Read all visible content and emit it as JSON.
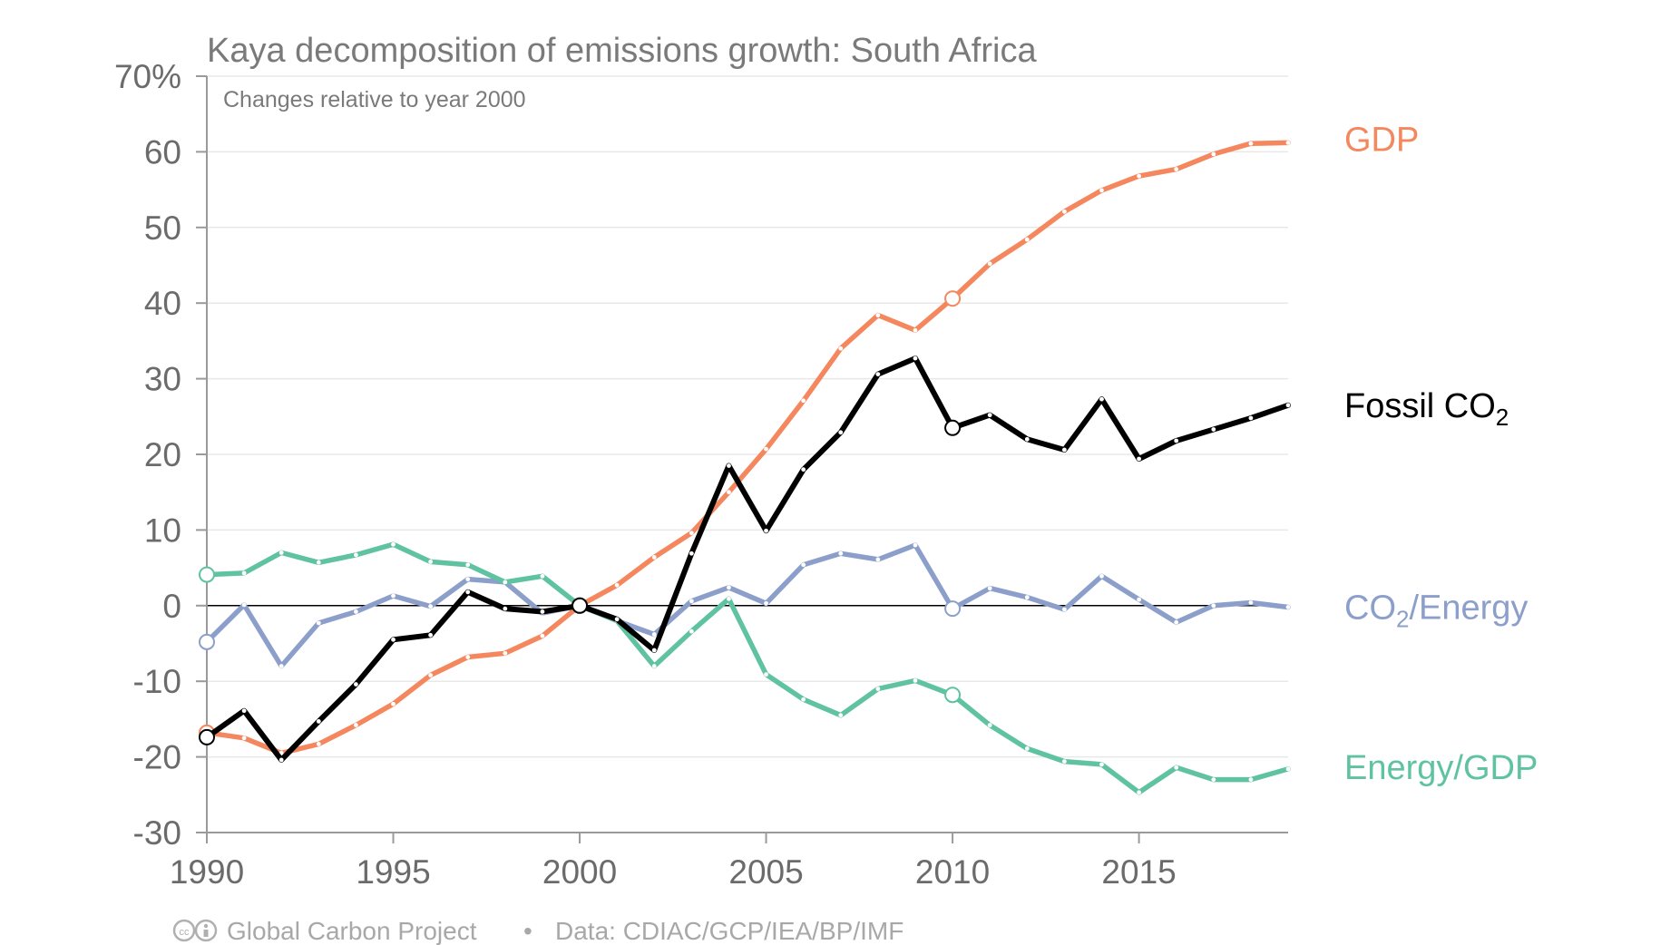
{
  "chart_data": {
    "type": "line",
    "title": "Kaya decomposition of emissions growth: South Africa",
    "subtitle": "Changes relative to year 2000",
    "xlabel": "",
    "ylabel": "",
    "xlim": [
      1990,
      2019
    ],
    "ylim": [
      -30,
      70
    ],
    "x_ticks": [
      1990,
      1995,
      2000,
      2005,
      2010,
      2015
    ],
    "x_tick_labels": [
      "1990",
      "1995",
      "2000",
      "2005",
      "2010",
      "2015"
    ],
    "y_ticks": [
      -30,
      -20,
      -10,
      0,
      10,
      20,
      30,
      40,
      50,
      60,
      70
    ],
    "y_tick_labels": [
      "-30",
      "-20",
      "-10",
      "0",
      "10",
      "20",
      "30",
      "40",
      "50",
      "60",
      "70%"
    ],
    "grid": true,
    "highlight_years": [
      1990,
      2000,
      2010
    ],
    "x": [
      1990,
      1991,
      1992,
      1993,
      1994,
      1995,
      1996,
      1997,
      1998,
      1999,
      2000,
      2001,
      2002,
      2003,
      2004,
      2005,
      2006,
      2007,
      2008,
      2009,
      2010,
      2011,
      2012,
      2013,
      2014,
      2015,
      2016,
      2017,
      2018,
      2019
    ],
    "series": [
      {
        "label": "GDP",
        "color": "#f4875d",
        "values": [
          -16.8,
          -17.5,
          -19.5,
          -18.3,
          -15.8,
          -13.0,
          -9.2,
          -6.8,
          -6.3,
          -4.0,
          0,
          2.7,
          6.4,
          9.6,
          15.0,
          20.7,
          27.1,
          34.0,
          38.4,
          36.4,
          40.6,
          45.2,
          48.4,
          52.1,
          54.9,
          56.8,
          57.7,
          59.7,
          61.1,
          61.2
        ]
      },
      {
        "label": "Fossil CO",
        "label_sub": "2",
        "color": "#000000",
        "values": [
          -17.4,
          -13.9,
          -20.4,
          -15.3,
          -10.4,
          -4.5,
          -3.9,
          1.8,
          -0.4,
          -0.8,
          0,
          -1.8,
          -5.9,
          6.9,
          18.5,
          9.9,
          18.0,
          22.9,
          30.6,
          32.7,
          23.5,
          25.2,
          22.0,
          20.6,
          27.3,
          19.4,
          21.8,
          23.3,
          24.8,
          26.5
        ]
      },
      {
        "label": "CO",
        "label_sub": "2",
        "label_rest": "/Energy",
        "color": "#8c9fcb",
        "values": [
          -4.8,
          0.1,
          -8.0,
          -2.3,
          -0.8,
          1.3,
          -0.1,
          3.5,
          3.1,
          -1.0,
          0,
          -2.0,
          -3.8,
          0.6,
          2.4,
          0.3,
          5.4,
          6.9,
          6.1,
          8.0,
          -0.4,
          2.3,
          1.1,
          -0.5,
          3.9,
          0.8,
          -2.2,
          0.0,
          0.4,
          -0.2
        ]
      },
      {
        "label": "Energy/GDP",
        "color": "#5fc2a0",
        "values": [
          4.1,
          4.3,
          7.0,
          5.7,
          6.7,
          8.1,
          5.8,
          5.4,
          3.1,
          3.9,
          0,
          -2.0,
          -8.0,
          -3.4,
          0.9,
          -9.1,
          -12.4,
          -14.5,
          -11.0,
          -9.9,
          -11.8,
          -15.8,
          -18.9,
          -20.6,
          -21.0,
          -24.7,
          -21.4,
          -23.0,
          -23.0,
          -21.6
        ]
      }
    ],
    "footer": {
      "source_org": "Global Carbon Project",
      "separator": "•",
      "data_credit": "Data: CDIAC/GCP/IEA/BP/IMF"
    }
  }
}
